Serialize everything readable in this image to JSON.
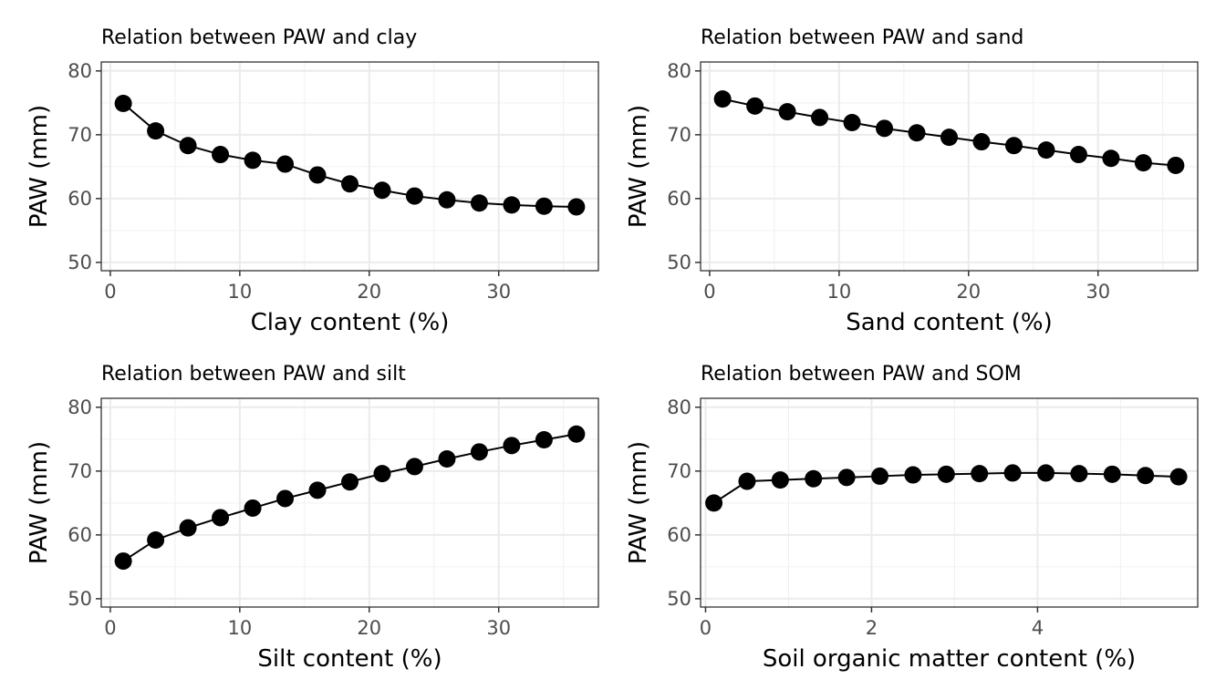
{
  "chart_data": [
    {
      "type": "line",
      "title": "Relation between PAW and clay",
      "xlabel": "Clay content (%)",
      "ylabel": "PAW (mm)",
      "xlim": [
        -0.7,
        37.7
      ],
      "ylim": [
        48.7,
        81.4
      ],
      "xticks": [
        0,
        10,
        20,
        30
      ],
      "yticks": [
        50,
        60,
        70,
        80
      ],
      "grid": true,
      "x": [
        1,
        3.5,
        6,
        8.5,
        11,
        13.5,
        16,
        18.5,
        21,
        23.5,
        26,
        28.5,
        31,
        33.5,
        36
      ],
      "y": [
        74.9,
        70.6,
        68.3,
        66.9,
        66.0,
        65.4,
        63.7,
        62.3,
        61.3,
        60.4,
        59.8,
        59.3,
        59.0,
        58.8,
        58.7
      ]
    },
    {
      "type": "line",
      "title": "Relation between PAW and sand",
      "xlabel": "Sand content (%)",
      "ylabel": "PAW (mm)",
      "xlim": [
        -0.7,
        37.7
      ],
      "ylim": [
        48.7,
        81.4
      ],
      "xticks": [
        0,
        10,
        20,
        30
      ],
      "yticks": [
        50,
        60,
        70,
        80
      ],
      "grid": true,
      "x": [
        1,
        3.5,
        6,
        8.5,
        11,
        13.5,
        16,
        18.5,
        21,
        23.5,
        26,
        28.5,
        31,
        33.5,
        36
      ],
      "y": [
        75.6,
        74.5,
        73.6,
        72.7,
        71.9,
        71.0,
        70.3,
        69.6,
        68.9,
        68.3,
        67.6,
        66.9,
        66.3,
        65.6,
        65.2
      ]
    },
    {
      "type": "line",
      "title": "Relation between PAW and silt",
      "xlabel": "Silt content (%)",
      "ylabel": "PAW (mm)",
      "xlim": [
        -0.7,
        37.7
      ],
      "ylim": [
        48.7,
        81.4
      ],
      "xticks": [
        0,
        10,
        20,
        30
      ],
      "yticks": [
        50,
        60,
        70,
        80
      ],
      "grid": true,
      "x": [
        1,
        3.5,
        6,
        8.5,
        11,
        13.5,
        16,
        18.5,
        21,
        23.5,
        26,
        28.5,
        31,
        33.5,
        36
      ],
      "y": [
        55.9,
        59.2,
        61.1,
        62.7,
        64.2,
        65.7,
        67.0,
        68.3,
        69.6,
        70.7,
        71.9,
        73.0,
        74.0,
        74.9,
        75.8
      ]
    },
    {
      "type": "line",
      "title": "Relation between PAW and SOM",
      "xlabel": "Soil organic matter content (%)",
      "ylabel": "PAW (mm)",
      "xlim": [
        -0.06,
        5.93
      ],
      "ylim": [
        48.7,
        81.4
      ],
      "xticks": [
        0,
        2,
        4
      ],
      "yticks": [
        50,
        60,
        70,
        80
      ],
      "grid": true,
      "x": [
        0.1,
        0.5,
        0.9,
        1.3,
        1.7,
        2.1,
        2.5,
        2.9,
        3.3,
        3.7,
        4.1,
        4.5,
        4.9,
        5.3,
        5.7
      ],
      "y": [
        65.0,
        68.4,
        68.6,
        68.8,
        69.0,
        69.2,
        69.4,
        69.5,
        69.6,
        69.7,
        69.7,
        69.6,
        69.5,
        69.3,
        69.1
      ]
    }
  ]
}
